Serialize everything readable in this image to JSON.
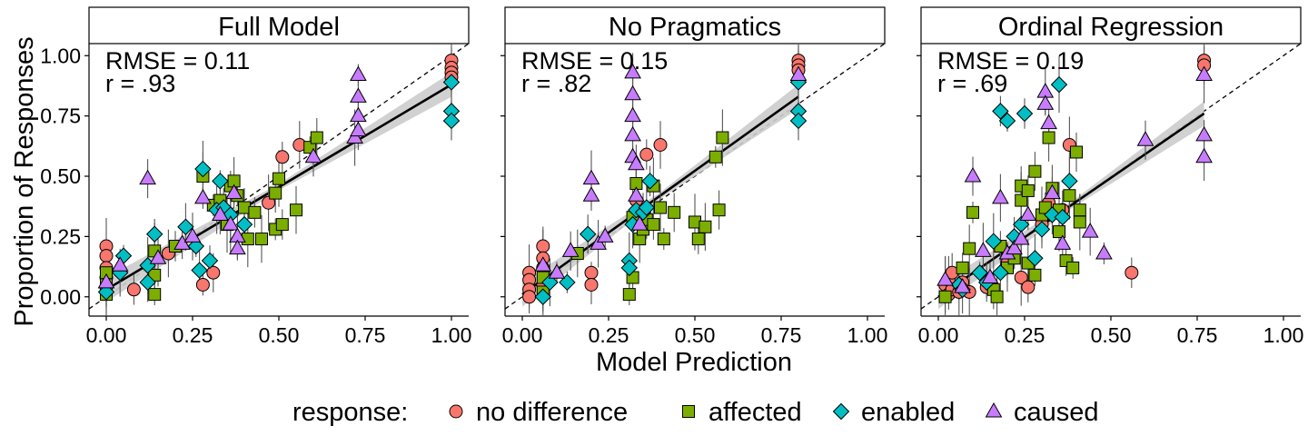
{
  "colors": {
    "no_difference": "#F8766D",
    "affected": "#7CAE00",
    "enabled": "#00BFC4",
    "caused": "#C77CFF",
    "band": "#cccccc"
  },
  "axis_labels": {
    "x": "Model Prediction",
    "y": "Proportion of Responses"
  },
  "legend": {
    "title": "response:",
    "items": [
      {
        "key": "no_difference",
        "label": "no difference",
        "shape": "circle"
      },
      {
        "key": "affected",
        "label": "affected",
        "shape": "square"
      },
      {
        "key": "enabled",
        "label": "enabled",
        "shape": "diamond"
      },
      {
        "key": "caused",
        "label": "caused",
        "shape": "triangle"
      }
    ]
  },
  "chart_data": [
    {
      "type": "scatter",
      "title": "Full Model",
      "stat_rmse": "RMSE = 0.11",
      "stat_r": "r = .93",
      "xlim": [
        -0.05,
        1.05
      ],
      "ylim": [
        -0.08,
        1.05
      ],
      "xticks": [
        "0.00",
        "0.25",
        "0.50",
        "0.75",
        "1.00"
      ],
      "yticks": [
        "0.00",
        "0.25",
        "0.50",
        "0.75",
        "1.00"
      ],
      "fit": [
        0.0,
        0.03,
        1.0,
        0.88
      ],
      "series": [
        {
          "name": "no difference",
          "key": "no_difference",
          "points": [
            [
              0,
              0.21
            ],
            [
              0,
              0.17
            ],
            [
              0,
              0.12
            ],
            [
              0,
              0.08
            ],
            [
              0,
              0.04
            ],
            [
              0,
              0.02
            ],
            [
              0.08,
              0.03
            ],
            [
              0.18,
              0.18
            ],
            [
              0.28,
              0.05
            ],
            [
              0.31,
              0.1
            ],
            [
              0.47,
              0.39
            ],
            [
              0.51,
              0.58
            ],
            [
              0.56,
              0.63
            ],
            [
              1.0,
              0.98
            ],
            [
              1.0,
              0.95
            ],
            [
              1.0,
              0.93
            ],
            [
              1.0,
              0.91
            ]
          ]
        },
        {
          "name": "affected",
          "key": "affected",
          "points": [
            [
              0,
              0.01
            ],
            [
              0,
              0.05
            ],
            [
              0,
              0.1
            ],
            [
              0.14,
              0.01
            ],
            [
              0.14,
              0.09
            ],
            [
              0.14,
              0.19
            ],
            [
              0.2,
              0.21
            ],
            [
              0.28,
              0.5
            ],
            [
              0.31,
              0.38
            ],
            [
              0.33,
              0.4
            ],
            [
              0.35,
              0.3
            ],
            [
              0.36,
              0.46
            ],
            [
              0.37,
              0.48
            ],
            [
              0.38,
              0.42
            ],
            [
              0.4,
              0.37
            ],
            [
              0.41,
              0.24
            ],
            [
              0.43,
              0.35
            ],
            [
              0.45,
              0.24
            ],
            [
              0.49,
              0.28
            ],
            [
              0.49,
              0.43
            ],
            [
              0.5,
              0.49
            ],
            [
              0.51,
              0.3
            ],
            [
              0.55,
              0.36
            ],
            [
              0.59,
              0.62
            ],
            [
              0.61,
              0.66
            ]
          ]
        },
        {
          "name": "enabled",
          "key": "enabled",
          "points": [
            [
              0,
              0.02
            ],
            [
              0.04,
              0.1
            ],
            [
              0.05,
              0.17
            ],
            [
              0.12,
              0.06
            ],
            [
              0.12,
              0.13
            ],
            [
              0.14,
              0.26
            ],
            [
              0.23,
              0.29
            ],
            [
              0.26,
              0.21
            ],
            [
              0.27,
              0.11
            ],
            [
              0.28,
              0.53
            ],
            [
              0.3,
              0.15
            ],
            [
              0.32,
              0.36
            ],
            [
              0.33,
              0.48
            ],
            [
              0.34,
              0.37
            ],
            [
              0.36,
              0.34
            ],
            [
              0.4,
              0.3
            ],
            [
              1.0,
              0.89
            ],
            [
              1.0,
              0.77
            ],
            [
              1.0,
              0.73
            ]
          ]
        },
        {
          "name": "caused",
          "key": "caused",
          "points": [
            [
              0,
              0.06
            ],
            [
              0.04,
              0.13
            ],
            [
              0.12,
              0.49
            ],
            [
              0.15,
              0.16
            ],
            [
              0.22,
              0.22
            ],
            [
              0.25,
              0.25
            ],
            [
              0.28,
              0.41
            ],
            [
              0.33,
              0.34
            ],
            [
              0.36,
              0.3
            ],
            [
              0.37,
              0.43
            ],
            [
              0.38,
              0.25
            ],
            [
              0.38,
              0.2
            ],
            [
              0.6,
              0.58
            ],
            [
              0.72,
              0.66
            ],
            [
              0.73,
              0.75
            ],
            [
              0.73,
              0.83
            ],
            [
              0.73,
              0.92
            ],
            [
              0.73,
              0.69
            ]
          ]
        }
      ]
    },
    {
      "type": "scatter",
      "title": "No Pragmatics",
      "stat_rmse": "RMSE = 0.15",
      "stat_r": "r = .82",
      "xlim": [
        -0.05,
        1.05
      ],
      "ylim": [
        -0.08,
        1.05
      ],
      "xticks": [
        "0.00",
        "0.25",
        "0.50",
        "0.75",
        "1.00"
      ],
      "yticks": [
        "0.00",
        "0.25",
        "0.50",
        "0.75",
        "1.00"
      ],
      "fit": [
        0.0,
        0.01,
        0.8,
        0.83
      ],
      "series": [
        {
          "name": "no difference",
          "key": "no_difference",
          "points": [
            [
              0.02,
              0.1
            ],
            [
              0.02,
              0.07
            ],
            [
              0.02,
              0.03
            ],
            [
              0.02,
              0
            ],
            [
              0.06,
              0.21
            ],
            [
              0.06,
              0.16
            ],
            [
              0.06,
              0.12
            ],
            [
              0.06,
              0.05
            ],
            [
              0.2,
              0.1
            ],
            [
              0.2,
              0.05
            ],
            [
              0.33,
              0.4
            ],
            [
              0.36,
              0.59
            ],
            [
              0.4,
              0.63
            ],
            [
              0.8,
              0.98
            ],
            [
              0.8,
              0.96
            ],
            [
              0.8,
              0.94
            ]
          ]
        },
        {
          "name": "affected",
          "key": "affected",
          "points": [
            [
              0.06,
              0.02
            ],
            [
              0.06,
              0.08
            ],
            [
              0.16,
              0.18
            ],
            [
              0.31,
              0.01
            ],
            [
              0.32,
              0.08
            ],
            [
              0.32,
              0.33
            ],
            [
              0.33,
              0.47
            ],
            [
              0.34,
              0.24
            ],
            [
              0.35,
              0.28
            ],
            [
              0.36,
              0.32
            ],
            [
              0.38,
              0.46
            ],
            [
              0.38,
              0.3
            ],
            [
              0.4,
              0.37
            ],
            [
              0.41,
              0.24
            ],
            [
              0.44,
              0.35
            ],
            [
              0.5,
              0.31
            ],
            [
              0.51,
              0.24
            ],
            [
              0.53,
              0.29
            ],
            [
              0.56,
              0.58
            ],
            [
              0.57,
              0.36
            ],
            [
              0.58,
              0.66
            ]
          ]
        },
        {
          "name": "enabled",
          "key": "enabled",
          "points": [
            [
              0.06,
              0
            ],
            [
              0.08,
              0.06
            ],
            [
              0.13,
              0.06
            ],
            [
              0.19,
              0.26
            ],
            [
              0.31,
              0.15
            ],
            [
              0.31,
              0.12
            ],
            [
              0.32,
              0.3
            ],
            [
              0.33,
              0.36
            ],
            [
              0.35,
              0.35
            ],
            [
              0.36,
              0.37
            ],
            [
              0.37,
              0.48
            ],
            [
              0.8,
              0.89
            ],
            [
              0.8,
              0.77
            ],
            [
              0.8,
              0.73
            ]
          ]
        },
        {
          "name": "caused",
          "key": "caused",
          "points": [
            [
              0.06,
              0.13
            ],
            [
              0.1,
              0.1
            ],
            [
              0.14,
              0.19
            ],
            [
              0.2,
              0.49
            ],
            [
              0.2,
              0.42
            ],
            [
              0.22,
              0.22
            ],
            [
              0.24,
              0.25
            ],
            [
              0.32,
              0.93
            ],
            [
              0.32,
              0.84
            ],
            [
              0.32,
              0.75
            ],
            [
              0.32,
              0.67
            ],
            [
              0.32,
              0.58
            ],
            [
              0.33,
              0.55
            ],
            [
              0.33,
              0.42
            ],
            [
              0.34,
              0.3
            ],
            [
              0.8,
              0.92
            ]
          ]
        }
      ]
    },
    {
      "type": "scatter",
      "title": "Ordinal Regression",
      "stat_rmse": "RMSE = 0.19",
      "stat_r": "r = .69",
      "xlim": [
        -0.05,
        1.05
      ],
      "ylim": [
        -0.08,
        1.05
      ],
      "xticks": [
        "0.00",
        "0.25",
        "0.50",
        "0.75",
        "1.00"
      ],
      "yticks": [
        "0.00",
        "0.25",
        "0.50",
        "0.75",
        "1.00"
      ],
      "fit": [
        0.0,
        0.0,
        0.77,
        0.76
      ],
      "series": [
        {
          "name": "no difference",
          "key": "no_difference",
          "points": [
            [
              0.02,
              0.05
            ],
            [
              0.03,
              0.01
            ],
            [
              0.03,
              0.07
            ],
            [
              0.04,
              0.03
            ],
            [
              0.04,
              0.1
            ],
            [
              0.06,
              0.02
            ],
            [
              0.07,
              0.06
            ],
            [
              0.09,
              0.02
            ],
            [
              0.14,
              0.04
            ],
            [
              0.2,
              0.14
            ],
            [
              0.24,
              0.08
            ],
            [
              0.26,
              0.04
            ],
            [
              0.3,
              0.3
            ],
            [
              0.32,
              0.39
            ],
            [
              0.36,
              0.36
            ],
            [
              0.38,
              0.63
            ],
            [
              0.56,
              0.1
            ],
            [
              0.77,
              0.98
            ],
            [
              0.77,
              0.96
            ]
          ]
        },
        {
          "name": "affected",
          "key": "affected",
          "points": [
            [
              0.02,
              0
            ],
            [
              0.07,
              0.12
            ],
            [
              0.09,
              0.2
            ],
            [
              0.1,
              0.35
            ],
            [
              0.16,
              0.03
            ],
            [
              0.17,
              0.0
            ],
            [
              0.18,
              0.21
            ],
            [
              0.2,
              0.12
            ],
            [
              0.22,
              0.16
            ],
            [
              0.24,
              0.46
            ],
            [
              0.24,
              0.4
            ],
            [
              0.26,
              0.44
            ],
            [
              0.26,
              0.14
            ],
            [
              0.28,
              0.09
            ],
            [
              0.28,
              0.52
            ],
            [
              0.3,
              0.34
            ],
            [
              0.31,
              0.37
            ],
            [
              0.32,
              0.66
            ],
            [
              0.33,
              0.45
            ],
            [
              0.35,
              0.27
            ],
            [
              0.35,
              0.36
            ],
            [
              0.37,
              0.15
            ],
            [
              0.38,
              0.42
            ],
            [
              0.39,
              0.12
            ],
            [
              0.4,
              0.6
            ],
            [
              0.41,
              0.31
            ],
            [
              0.41,
              0.36
            ]
          ]
        },
        {
          "name": "enabled",
          "key": "enabled",
          "points": [
            [
              0.06,
              0.05
            ],
            [
              0.07,
              0.03
            ],
            [
              0.12,
              0.1
            ],
            [
              0.14,
              0.06
            ],
            [
              0.16,
              0.23
            ],
            [
              0.18,
              0.77
            ],
            [
              0.18,
              0.1
            ],
            [
              0.2,
              0.73
            ],
            [
              0.22,
              0.25
            ],
            [
              0.24,
              0.3
            ],
            [
              0.25,
              0.76
            ],
            [
              0.28,
              0.16
            ],
            [
              0.3,
              0.28
            ],
            [
              0.33,
              0.34
            ],
            [
              0.35,
              0.88
            ],
            [
              0.36,
              0.33
            ],
            [
              0.38,
              0.48
            ]
          ]
        },
        {
          "name": "caused",
          "key": "caused",
          "points": [
            [
              0.02,
              0.07
            ],
            [
              0.07,
              0.04
            ],
            [
              0.1,
              0.5
            ],
            [
              0.13,
              0.19
            ],
            [
              0.15,
              0.08
            ],
            [
              0.18,
              0.41
            ],
            [
              0.2,
              0.18
            ],
            [
              0.22,
              0.2
            ],
            [
              0.24,
              0.24
            ],
            [
              0.26,
              0.34
            ],
            [
              0.31,
              0.85
            ],
            [
              0.31,
              0.8
            ],
            [
              0.32,
              0.72
            ],
            [
              0.33,
              0.43
            ],
            [
              0.36,
              0.22
            ],
            [
              0.44,
              0.27
            ],
            [
              0.48,
              0.18
            ],
            [
              0.6,
              0.65
            ],
            [
              0.77,
              0.92
            ],
            [
              0.77,
              0.67
            ],
            [
              0.77,
              0.58
            ]
          ]
        }
      ]
    }
  ]
}
